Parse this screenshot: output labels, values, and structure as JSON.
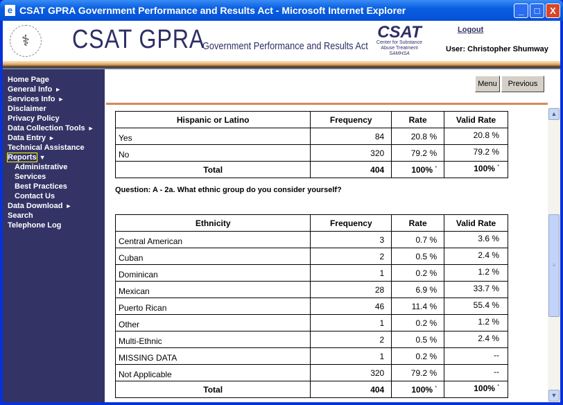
{
  "window": {
    "title": "CSAT GPRA Government Performance and Results Act - Microsoft Internet Explorer",
    "minimize": "_",
    "maximize": "□",
    "close": "X"
  },
  "header": {
    "brand": "CSAT GPRA",
    "brand_sub": "Government Performance and Results Act",
    "csat_logo": {
      "name": "CSAT",
      "line1": "Center for Substance",
      "line2": "Abuse Treatment",
      "line3": "SAMHSA"
    },
    "logout": "Logout",
    "user": "User: Christopher Shumway"
  },
  "sidebar": {
    "items": [
      {
        "label": "Home Page",
        "arrow": ""
      },
      {
        "label": "General Info",
        "arrow": "►"
      },
      {
        "label": "Services Info",
        "arrow": "►"
      },
      {
        "label": "Disclaimer",
        "arrow": ""
      },
      {
        "label": "Privacy Policy",
        "arrow": ""
      },
      {
        "label": "Data Collection Tools",
        "arrow": "►"
      },
      {
        "label": "Data Entry",
        "arrow": "►"
      },
      {
        "label": "Technical Assistance",
        "arrow": ""
      },
      {
        "label": "Reports",
        "arrow": "▼"
      },
      {
        "label": "Administrative",
        "arrow": ""
      },
      {
        "label": "Services",
        "arrow": ""
      },
      {
        "label": "Best Practices",
        "arrow": ""
      },
      {
        "label": "Contact Us",
        "arrow": ""
      },
      {
        "label": "Data Download",
        "arrow": "►"
      },
      {
        "label": "Search",
        "arrow": ""
      },
      {
        "label": "Telephone Log",
        "arrow": ""
      }
    ]
  },
  "toolbar": {
    "menu": "Menu",
    "previous": "Previous"
  },
  "table1": {
    "headers": [
      "Hispanic or Latino",
      "Frequency",
      "Rate",
      "Valid Rate"
    ],
    "rows": [
      [
        "Yes",
        "84",
        "20.8 %",
        "20.8 %"
      ],
      [
        "No",
        "320",
        "79.2 %",
        "79.2 %"
      ]
    ],
    "total": [
      "Total",
      "404",
      "100%",
      "100%"
    ],
    "footnote_mark": "*"
  },
  "question": "Question: A - 2a. What ethnic group do you consider yourself?",
  "table2": {
    "headers": [
      "Ethnicity",
      "Frequency",
      "Rate",
      "Valid Rate"
    ],
    "rows": [
      [
        "Central American",
        "3",
        "0.7 %",
        "3.6 %"
      ],
      [
        "Cuban",
        "2",
        "0.5 %",
        "2.4 %"
      ],
      [
        "Dominican",
        "1",
        "0.2 %",
        "1.2 %"
      ],
      [
        "Mexican",
        "28",
        "6.9 %",
        "33.7 %"
      ],
      [
        "Puerto Rican",
        "46",
        "11.4 %",
        "55.4 %"
      ],
      [
        "Other",
        "1",
        "0.2 %",
        "1.2 %"
      ],
      [
        "Multi-Ethnic",
        "2",
        "0.5 %",
        "2.4 %"
      ],
      [
        "MISSING DATA",
        "1",
        "0.2 %",
        "--"
      ],
      [
        "Not Applicable",
        "320",
        "79.2 %",
        "--"
      ]
    ],
    "total": [
      "Total",
      "404",
      "100%",
      "100%"
    ],
    "footnote_mark": "*"
  }
}
